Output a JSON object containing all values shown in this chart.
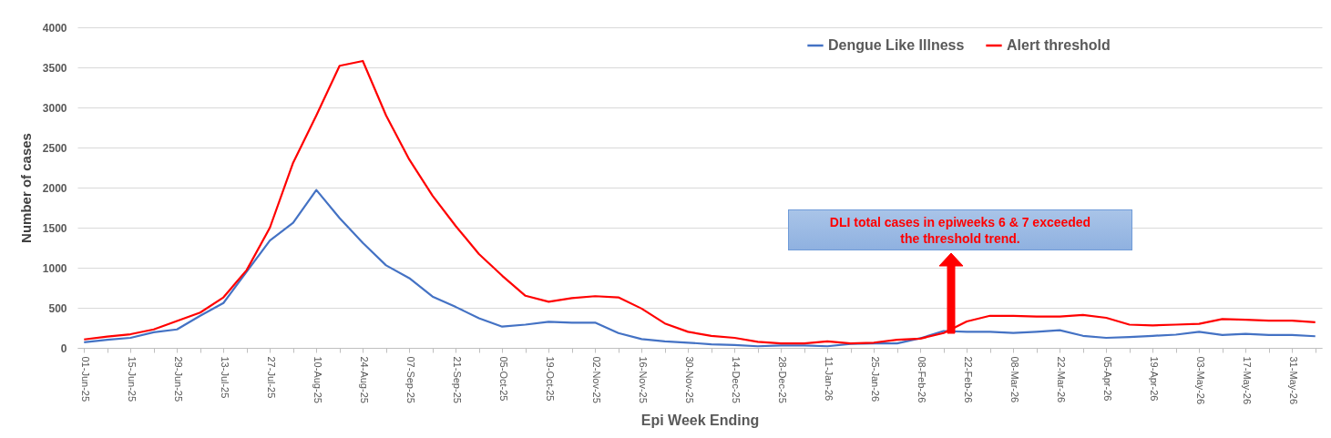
{
  "chart_data": {
    "type": "line",
    "xlabel": "Epi Week Ending",
    "ylabel": "Number of cases",
    "categories": [
      "01-Jun-25",
      null,
      "15-Jun-25",
      null,
      "29-Jun-25",
      null,
      "13-Jul-25",
      null,
      "27-Jul-25",
      null,
      "10-Aug-25",
      null,
      "24-Aug-25",
      null,
      "07-Sep-25",
      null,
      "21-Sep-25",
      null,
      "05-Oct-25",
      null,
      "19-Oct-25",
      null,
      "02-Nov-25",
      null,
      "16-Nov-25",
      null,
      "30-Nov-25",
      null,
      "14-Dec-25",
      null,
      "28-Dec-25",
      null,
      "11-Jan-26",
      null,
      "25-Jan-26",
      null,
      "08-Feb-26",
      null,
      "22-Feb-26",
      null,
      "08-Mar-26",
      null,
      "22-Mar-26",
      null,
      "05-Apr-26",
      null,
      "19-Apr-26",
      null,
      "03-May-26",
      null,
      "17-May-26",
      null,
      "31-May-26",
      null
    ],
    "series": [
      {
        "name": "Dengue Like Illness",
        "color": "#4472c4",
        "values": [
          70,
          100,
          125,
          195,
          230,
          400,
          560,
          950,
          1340,
          1560,
          1970,
          1620,
          1310,
          1030,
          870,
          640,
          510,
          370,
          265,
          290,
          325,
          315,
          315,
          185,
          110,
          80,
          65,
          45,
          35,
          20,
          30,
          30,
          20,
          50,
          55,
          55,
          120,
          210,
          200,
          200,
          185,
          200,
          220,
          150,
          125,
          135,
          150,
          165,
          200,
          160,
          175,
          160,
          160,
          145
        ]
      },
      {
        "name": "Alert threshold",
        "color": "#ff0000",
        "values": [
          105,
          140,
          170,
          230,
          335,
          440,
          630,
          970,
          1500,
          2310,
          2900,
          3520,
          3580,
          2900,
          2350,
          1900,
          1520,
          1170,
          900,
          650,
          575,
          620,
          645,
          630,
          490,
          305,
          200,
          150,
          125,
          75,
          55,
          55,
          80,
          55,
          65,
          100,
          115,
          185,
          330,
          400,
          400,
          390,
          390,
          410,
          375,
          290,
          280,
          290,
          300,
          360,
          350,
          340,
          340,
          320
        ]
      }
    ],
    "ylim": [
      0,
      4000
    ],
    "yticks": [
      0,
      500,
      1000,
      1500,
      2000,
      2500,
      3000,
      3500,
      4000
    ],
    "grid": "y",
    "legend": "top",
    "line_style": "solid",
    "marker": "none",
    "annotations": [
      "DLI total cases in epiweeks 6 & 7 exceeded the threshold trend."
    ]
  }
}
